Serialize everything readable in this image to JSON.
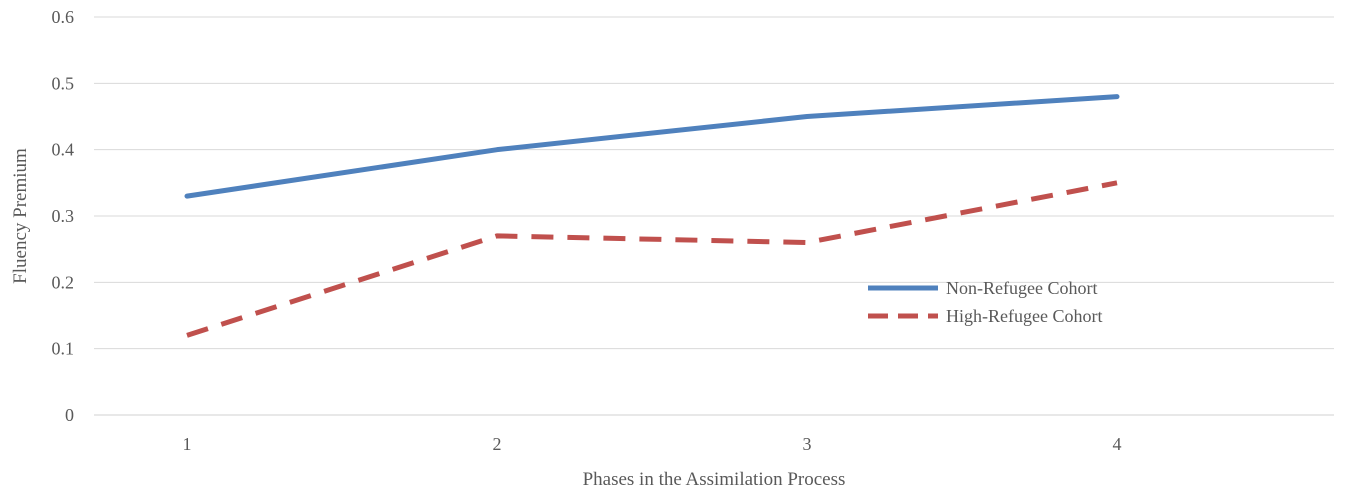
{
  "chart_data": {
    "type": "line",
    "title": "",
    "xlabel": "Phases in the Assimilation Process",
    "ylabel": "Fluency Premium",
    "categories": [
      "1",
      "2",
      "3",
      "4"
    ],
    "ylim": [
      0,
      0.6
    ],
    "yticks": [
      "0",
      "0.1",
      "0.2",
      "0.3",
      "0.4",
      "0.5",
      "0.6"
    ],
    "grid": true,
    "legend_position": "center-right",
    "series": [
      {
        "name": "Non-Refugee Cohort",
        "values": [
          0.33,
          0.4,
          0.45,
          0.48
        ],
        "color": "#4F81BD",
        "style": "solid"
      },
      {
        "name": "High-Refugee Cohort",
        "values": [
          0.12,
          0.27,
          0.26,
          0.35
        ],
        "color": "#C0504D",
        "style": "dashed"
      }
    ]
  }
}
